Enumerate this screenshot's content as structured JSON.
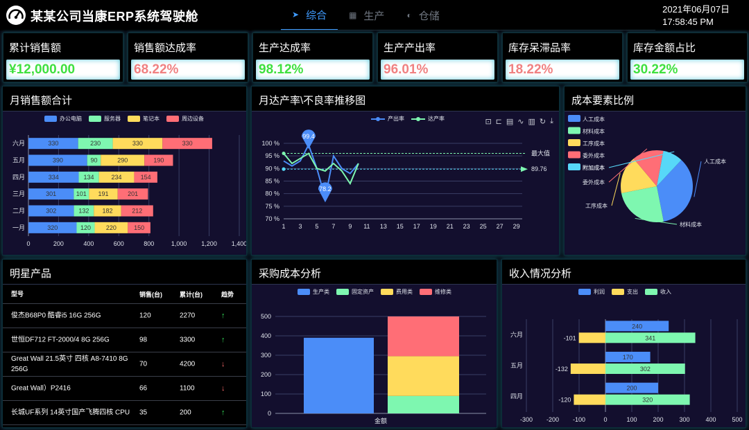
{
  "header": {
    "title": "某某公司当康ERP系统驾驶舱",
    "nav": [
      {
        "label": "综合",
        "icon": "navigation-arrow-icon",
        "glyph": "➤",
        "active": true
      },
      {
        "label": "生产",
        "icon": "grid-icon",
        "glyph": "▦",
        "active": false
      },
      {
        "label": "仓储",
        "icon": "gauge-icon",
        "glyph": "◐",
        "active": false
      }
    ],
    "date": "2021年06月07日",
    "time": "17:58:45 PM"
  },
  "kpis": [
    {
      "label": "累计销售额",
      "value": "¥12,000.00",
      "color": "#3fe03f"
    },
    {
      "label": "销售额达成率",
      "value": "68.22%",
      "color": "#f08181"
    },
    {
      "label": "生产达成率",
      "value": "98.12%",
      "color": "#3fe03f"
    },
    {
      "label": "生产产出率",
      "value": "96.01%",
      "color": "#f08181"
    },
    {
      "label": "库存呆滞品率",
      "value": "18.22%",
      "color": "#f08181"
    },
    {
      "label": "库存金额占比",
      "value": "30.22%",
      "color": "#3fe03f"
    }
  ],
  "panels": {
    "monthly_sales": "月销售额合计",
    "trend": "月达产率\\不良率推移图",
    "cost": "成本要素比例",
    "stars": "明星产品",
    "purchase": "采购成本分析",
    "income": "收入情况分析"
  },
  "colors": {
    "blue": "#4b8df8",
    "green": "#7ef7b0",
    "yellow": "#ffdb5c",
    "red": "#ff6e76",
    "cyan": "#57d8f8"
  },
  "chart_data": [
    {
      "id": "monthly_sales",
      "type": "bar",
      "stacked": true,
      "orientation": "horizontal",
      "categories": [
        "一月",
        "二月",
        "三月",
        "四月",
        "五月",
        "六月"
      ],
      "series": [
        {
          "name": "办公电脑",
          "values": [
            320,
            302,
            301,
            334,
            390,
            330
          ],
          "color": "#4b8df8"
        },
        {
          "name": "服务器",
          "values": [
            120,
            132,
            101,
            134,
            90,
            230
          ],
          "color": "#7ef7b0"
        },
        {
          "name": "笔记本",
          "values": [
            220,
            182,
            191,
            234,
            290,
            330
          ],
          "color": "#ffdb5c"
        },
        {
          "name": "周边设备",
          "values": [
            150,
            212,
            201,
            154,
            190,
            330
          ],
          "color": "#ff6e76"
        }
      ],
      "xlim": [
        0,
        1400
      ],
      "xticks": [
        "0",
        "200",
        "400",
        "600",
        "800",
        "1,000",
        "1,200",
        "1,400"
      ]
    },
    {
      "id": "trend",
      "type": "line",
      "series": [
        {
          "name": "产出率",
          "color": "#4b8df8",
          "points": [
            [
              1,
              93
            ],
            [
              2,
              91
            ],
            [
              3,
              93
            ],
            [
              4,
              99.4
            ],
            [
              5,
              90
            ],
            [
              6,
              78.2
            ],
            [
              7,
              95
            ],
            [
              8,
              90
            ],
            [
              9,
              88
            ],
            [
              10,
              92
            ]
          ]
        },
        {
          "name": "达产率",
          "color": "#7ef7b0",
          "points": [
            [
              1,
              96
            ],
            [
              2,
              92
            ],
            [
              3,
              94
            ],
            [
              4,
              96
            ],
            [
              5,
              90
            ],
            [
              6,
              89
            ],
            [
              7,
              92
            ],
            [
              8,
              89
            ],
            [
              9,
              84
            ],
            [
              10,
              92
            ]
          ]
        }
      ],
      "ylim": [
        70,
        100
      ],
      "yticks": [
        "70 %",
        "75 %",
        "80 %",
        "85 %",
        "90 %",
        "95 %",
        "100 %"
      ],
      "xticks": [
        "1",
        "3",
        "5",
        "7",
        "9",
        "11",
        "13",
        "15",
        "17",
        "19",
        "21",
        "23",
        "25",
        "27",
        "29"
      ],
      "markpoints": [
        {
          "label": "99.4",
          "x": 4,
          "y": 99.4
        },
        {
          "label": "78.2",
          "x": 6,
          "y": 78.2
        }
      ],
      "marklines": [
        {
          "label": "最大值",
          "y": 96
        },
        {
          "label": "89.76",
          "y": 89.76
        }
      ]
    },
    {
      "id": "cost",
      "type": "pie",
      "slices": [
        {
          "name": "人工成本",
          "value": 35,
          "color": "#4b8df8"
        },
        {
          "name": "材料成本",
          "value": 25,
          "color": "#7ef7b0"
        },
        {
          "name": "工序成本",
          "value": 17,
          "color": "#ffdb5c"
        },
        {
          "name": "委外成本",
          "value": 14,
          "color": "#ff6e76"
        },
        {
          "name": "附加成本",
          "value": 9,
          "color": "#57d8f8"
        }
      ],
      "legend": [
        "人工成本",
        "材料成本",
        "工序成本",
        "委外成本",
        "附加成本"
      ]
    },
    {
      "id": "purchase",
      "type": "bar",
      "categories": [
        "金额"
      ],
      "series": [
        {
          "name": "生产类",
          "values": [
            390
          ],
          "color": "#4b8df8"
        },
        {
          "name": "固定资产",
          "values": [
            90
          ],
          "color": "#7ef7b0"
        },
        {
          "name": "费用类",
          "values": [
            205
          ],
          "color": "#ffdb5c"
        },
        {
          "name": "维修类",
          "values": [
            205
          ],
          "color": "#ff6e76"
        }
      ],
      "ylim": [
        0,
        500
      ],
      "yticks": [
        "0",
        "100",
        "200",
        "300",
        "400",
        "500"
      ]
    },
    {
      "id": "income",
      "type": "bar",
      "orientation": "horizontal",
      "categories": [
        "四月",
        "五月",
        "六月"
      ],
      "series": [
        {
          "name": "利润",
          "values": [
            200,
            170,
            240
          ],
          "color": "#4b8df8"
        },
        {
          "name": "支出",
          "values": [
            -120,
            -132,
            -101
          ],
          "color": "#ffdb5c"
        },
        {
          "name": "收入",
          "values": [
            320,
            302,
            341
          ],
          "color": "#7ef7b0"
        }
      ],
      "xlim": [
        -300,
        500
      ],
      "xticks": [
        "-300",
        "-200",
        "-100",
        "0",
        "100",
        "200",
        "300",
        "400",
        "500"
      ]
    }
  ],
  "products": {
    "headers": [
      "型号",
      "销售(台)",
      "累计(台)",
      "趋势"
    ],
    "rows": [
      {
        "model": "俊杰B68P0 酷睿i5 16G 256G",
        "sales": "120",
        "cum": "2270",
        "trend": "up",
        "glyph": "↑"
      },
      {
        "model": "世恒DF712 FT-2000/4 8G 256G",
        "sales": "98",
        "cum": "3300",
        "trend": "up",
        "glyph": "↑"
      },
      {
        "model": "Great Wall 21.5英寸 四核 A8-7410 8G 256G",
        "sales": "70",
        "cum": "4200",
        "trend": "down",
        "glyph": "↓"
      },
      {
        "model": "Great Wall）P2416",
        "sales": "66",
        "cum": "1100",
        "trend": "down",
        "glyph": "↓"
      },
      {
        "model": "长城UF系列 14英寸国产飞腾四核 CPU",
        "sales": "35",
        "cum": "200",
        "trend": "up",
        "glyph": "↑"
      }
    ]
  }
}
